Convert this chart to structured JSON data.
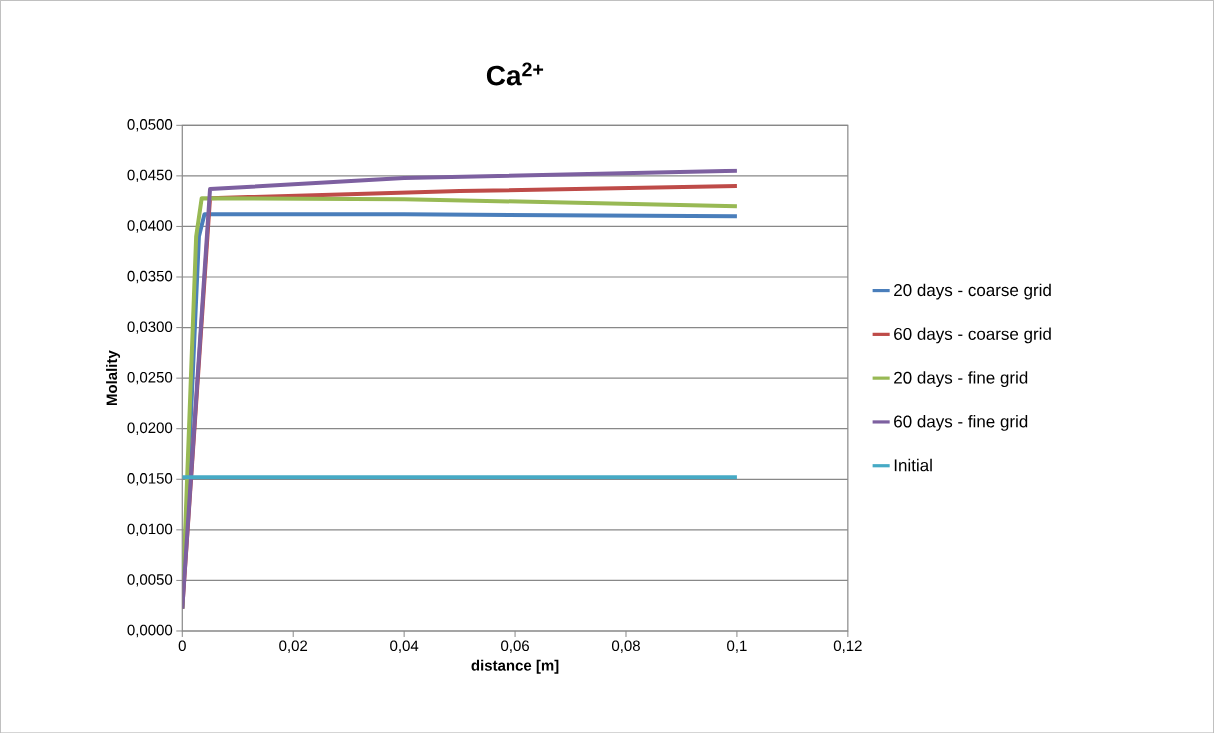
{
  "chart_data": {
    "type": "line",
    "title": "Ca$^{2+}$",
    "xlabel": "distance [m]",
    "ylabel": "Molality",
    "xlim": [
      0,
      0.12
    ],
    "ylim": [
      0,
      0.05
    ],
    "xticks": [
      0,
      {
        "value": 0.02,
        "label": "0,02"
      },
      {
        "value": 0.04,
        "label": "0,04"
      },
      {
        "value": 0.06,
        "label": "0,06"
      },
      {
        "value": 0.08,
        "label": "0,08"
      },
      {
        "value": 0.1,
        "label": "0,1"
      },
      {
        "value": 0.12,
        "label": "0,12"
      }
    ],
    "yticks": [
      {
        "value": 0,
        "label": "0,0000"
      },
      {
        "value": 0.005,
        "label": "0,0050"
      },
      {
        "value": 0.01,
        "label": "0,0100"
      },
      {
        "value": 0.015,
        "label": "0,0150"
      },
      {
        "value": 0.02,
        "label": "0,0200"
      },
      {
        "value": 0.025,
        "label": "0,0250"
      },
      {
        "value": 0.03,
        "label": "0,0300"
      },
      {
        "value": 0.035,
        "label": "0,0350"
      },
      {
        "value": 0.04,
        "label": "0,0400"
      },
      {
        "value": 0.045,
        "label": "0,0450"
      },
      {
        "value": 0.05,
        "label": "0,0500"
      }
    ],
    "grid": "y",
    "legend": "right",
    "marker": "none",
    "line_style": "solid",
    "series": [
      {
        "name": "20 days - coarse grid",
        "color": "#4a7ebb",
        "x": [
          0,
          0.003,
          0.004,
          0.04,
          0.1
        ],
        "values": [
          0.0022,
          0.039,
          0.0412,
          0.0412,
          0.041
        ]
      },
      {
        "name": "60 days - coarse grid",
        "color": "#be4b48",
        "x": [
          0,
          0.005,
          0.05,
          0.1
        ],
        "values": [
          0.0022,
          0.0428,
          0.0435,
          0.044
        ]
      },
      {
        "name": "20 days - fine grid",
        "color": "#98b954",
        "x": [
          0,
          0.0025,
          0.0035,
          0.04,
          0.1
        ],
        "values": [
          0.0022,
          0.039,
          0.0428,
          0.0427,
          0.042
        ]
      },
      {
        "name": "60 days - fine grid",
        "color": "#7d60a0",
        "x": [
          0,
          0.005,
          0.04,
          0.1
        ],
        "values": [
          0.0022,
          0.0437,
          0.0448,
          0.0455
        ]
      },
      {
        "name": "Initial",
        "color": "#46aac5",
        "x": [
          0,
          0.1
        ],
        "values": [
          0.0152,
          0.0152
        ]
      }
    ]
  }
}
